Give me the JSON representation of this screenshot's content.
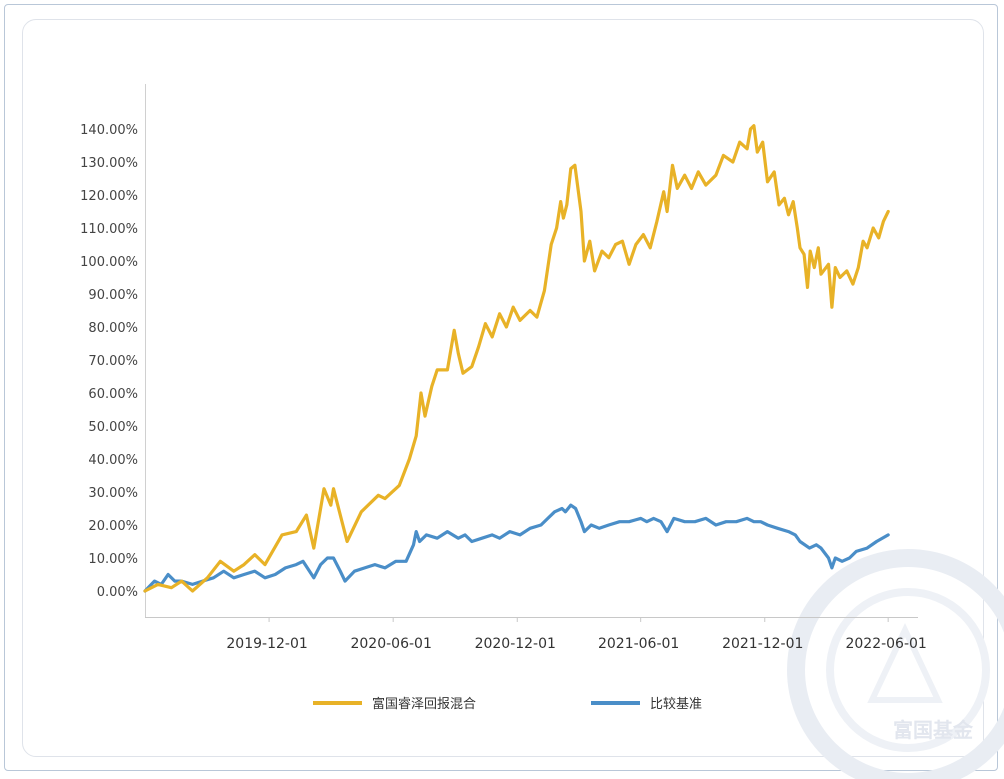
{
  "chart_data": {
    "type": "line",
    "y_tick_labels": [
      "0.00%",
      "10.00%",
      "20.00%",
      "30.00%",
      "40.00%",
      "50.00%",
      "60.00%",
      "70.00%",
      "80.00%",
      "90.00%",
      "100.00%",
      "110.00%",
      "120.00%",
      "130.00%",
      "140.00%"
    ],
    "x_tick_labels": [
      "2019-12-01",
      "2020-06-01",
      "2020-12-01",
      "2021-06-01",
      "2021-12-01",
      "2022-06-01"
    ],
    "x_tick_dates": [
      "2019-12-01",
      "2020-06-01",
      "2020-12-01",
      "2021-06-01",
      "2021-12-01",
      "2022-06-01"
    ],
    "xlim": [
      "2019-06-01",
      "2022-07-15"
    ],
    "ylim": [
      -8,
      155
    ],
    "grid": false,
    "legend_position": "bottom",
    "series": [
      {
        "name": "富国睿泽回报混合",
        "color": "#e8b227",
        "points": [
          [
            "2019-06-01",
            0
          ],
          [
            "2019-06-20",
            2
          ],
          [
            "2019-07-10",
            1
          ],
          [
            "2019-07-25",
            3
          ],
          [
            "2019-08-10",
            0
          ],
          [
            "2019-09-01",
            4
          ],
          [
            "2019-09-20",
            9
          ],
          [
            "2019-10-10",
            6
          ],
          [
            "2019-10-25",
            8
          ],
          [
            "2019-11-10",
            11
          ],
          [
            "2019-11-25",
            8
          ],
          [
            "2019-12-20",
            17
          ],
          [
            "2020-01-10",
            18
          ],
          [
            "2020-01-25",
            23
          ],
          [
            "2020-02-05",
            13
          ],
          [
            "2020-02-20",
            31
          ],
          [
            "2020-03-01",
            26
          ],
          [
            "2020-03-05",
            31
          ],
          [
            "2020-03-25",
            15
          ],
          [
            "2020-04-15",
            24
          ],
          [
            "2020-05-10",
            29
          ],
          [
            "2020-05-20",
            28
          ],
          [
            "2020-06-10",
            32
          ],
          [
            "2020-06-25",
            40
          ],
          [
            "2020-07-05",
            47
          ],
          [
            "2020-07-12",
            60
          ],
          [
            "2020-07-18",
            53
          ],
          [
            "2020-07-28",
            62
          ],
          [
            "2020-08-05",
            67
          ],
          [
            "2020-08-20",
            67
          ],
          [
            "2020-08-30",
            79
          ],
          [
            "2020-09-05",
            72
          ],
          [
            "2020-09-12",
            66
          ],
          [
            "2020-09-25",
            68
          ],
          [
            "2020-10-05",
            74
          ],
          [
            "2020-10-15",
            81
          ],
          [
            "2020-10-25",
            77
          ],
          [
            "2020-11-05",
            84
          ],
          [
            "2020-11-15",
            80
          ],
          [
            "2020-11-25",
            86
          ],
          [
            "2020-12-05",
            82
          ],
          [
            "2020-12-20",
            85
          ],
          [
            "2020-12-30",
            83
          ],
          [
            "2021-01-10",
            91
          ],
          [
            "2021-01-20",
            105
          ],
          [
            "2021-01-28",
            110
          ],
          [
            "2021-02-03",
            118
          ],
          [
            "2021-02-07",
            113
          ],
          [
            "2021-02-12",
            117
          ],
          [
            "2021-02-18",
            128
          ],
          [
            "2021-02-24",
            129
          ],
          [
            "2021-03-05",
            115
          ],
          [
            "2021-03-10",
            100
          ],
          [
            "2021-03-18",
            106
          ],
          [
            "2021-03-25",
            97
          ],
          [
            "2021-04-05",
            103
          ],
          [
            "2021-04-15",
            101
          ],
          [
            "2021-04-25",
            105
          ],
          [
            "2021-05-05",
            106
          ],
          [
            "2021-05-15",
            99
          ],
          [
            "2021-05-25",
            105
          ],
          [
            "2021-06-05",
            108
          ],
          [
            "2021-06-15",
            104
          ],
          [
            "2021-06-25",
            112
          ],
          [
            "2021-07-05",
            121
          ],
          [
            "2021-07-10",
            115
          ],
          [
            "2021-07-18",
            129
          ],
          [
            "2021-07-25",
            122
          ],
          [
            "2021-08-05",
            126
          ],
          [
            "2021-08-15",
            122
          ],
          [
            "2021-08-25",
            127
          ],
          [
            "2021-09-05",
            123
          ],
          [
            "2021-09-20",
            126
          ],
          [
            "2021-10-01",
            132
          ],
          [
            "2021-10-15",
            130
          ],
          [
            "2021-10-25",
            136
          ],
          [
            "2021-11-05",
            134
          ],
          [
            "2021-11-10",
            140
          ],
          [
            "2021-11-15",
            141
          ],
          [
            "2021-11-20",
            133
          ],
          [
            "2021-11-28",
            136
          ],
          [
            "2021-12-05",
            124
          ],
          [
            "2021-12-15",
            127
          ],
          [
            "2021-12-22",
            117
          ],
          [
            "2021-12-30",
            119
          ],
          [
            "2022-01-05",
            114
          ],
          [
            "2022-01-12",
            118
          ],
          [
            "2022-01-18",
            110
          ],
          [
            "2022-01-22",
            104
          ],
          [
            "2022-01-28",
            102
          ],
          [
            "2022-02-02",
            92
          ],
          [
            "2022-02-06",
            103
          ],
          [
            "2022-02-12",
            98
          ],
          [
            "2022-02-18",
            104
          ],
          [
            "2022-02-22",
            96
          ],
          [
            "2022-03-05",
            99
          ],
          [
            "2022-03-10",
            86
          ],
          [
            "2022-03-15",
            98
          ],
          [
            "2022-03-22",
            95
          ],
          [
            "2022-04-01",
            97
          ],
          [
            "2022-04-10",
            93
          ],
          [
            "2022-04-18",
            98
          ],
          [
            "2022-04-25",
            106
          ],
          [
            "2022-05-01",
            104
          ],
          [
            "2022-05-10",
            110
          ],
          [
            "2022-05-18",
            107
          ],
          [
            "2022-05-25",
            112
          ],
          [
            "2022-06-01",
            115
          ]
        ]
      },
      {
        "name": "比较基准",
        "color": "#4a8ec8",
        "points": [
          [
            "2019-06-01",
            0
          ],
          [
            "2019-06-15",
            3
          ],
          [
            "2019-06-25",
            2
          ],
          [
            "2019-07-05",
            5
          ],
          [
            "2019-07-15",
            3
          ],
          [
            "2019-07-25",
            3
          ],
          [
            "2019-08-10",
            2
          ],
          [
            "2019-08-25",
            3
          ],
          [
            "2019-09-10",
            4
          ],
          [
            "2019-09-25",
            6
          ],
          [
            "2019-10-10",
            4
          ],
          [
            "2019-10-25",
            5
          ],
          [
            "2019-11-10",
            6
          ],
          [
            "2019-11-25",
            4
          ],
          [
            "2019-12-10",
            5
          ],
          [
            "2019-12-25",
            7
          ],
          [
            "2020-01-10",
            8
          ],
          [
            "2020-01-20",
            9
          ],
          [
            "2020-02-05",
            4
          ],
          [
            "2020-02-15",
            8
          ],
          [
            "2020-02-25",
            10
          ],
          [
            "2020-03-05",
            10
          ],
          [
            "2020-03-15",
            6
          ],
          [
            "2020-03-22",
            3
          ],
          [
            "2020-04-05",
            6
          ],
          [
            "2020-04-20",
            7
          ],
          [
            "2020-05-05",
            8
          ],
          [
            "2020-05-20",
            7
          ],
          [
            "2020-06-05",
            9
          ],
          [
            "2020-06-20",
            9
          ],
          [
            "2020-07-01",
            14
          ],
          [
            "2020-07-05",
            18
          ],
          [
            "2020-07-10",
            15
          ],
          [
            "2020-07-20",
            17
          ],
          [
            "2020-08-05",
            16
          ],
          [
            "2020-08-20",
            18
          ],
          [
            "2020-09-05",
            16
          ],
          [
            "2020-09-15",
            17
          ],
          [
            "2020-09-25",
            15
          ],
          [
            "2020-10-10",
            16
          ],
          [
            "2020-10-25",
            17
          ],
          [
            "2020-11-05",
            16
          ],
          [
            "2020-11-20",
            18
          ],
          [
            "2020-12-05",
            17
          ],
          [
            "2020-12-20",
            19
          ],
          [
            "2021-01-05",
            20
          ],
          [
            "2021-01-15",
            22
          ],
          [
            "2021-01-25",
            24
          ],
          [
            "2021-02-05",
            25
          ],
          [
            "2021-02-10",
            24
          ],
          [
            "2021-02-18",
            26
          ],
          [
            "2021-02-25",
            25
          ],
          [
            "2021-03-05",
            21
          ],
          [
            "2021-03-10",
            18
          ],
          [
            "2021-03-20",
            20
          ],
          [
            "2021-04-01",
            19
          ],
          [
            "2021-04-15",
            20
          ],
          [
            "2021-05-01",
            21
          ],
          [
            "2021-05-15",
            21
          ],
          [
            "2021-06-01",
            22
          ],
          [
            "2021-06-10",
            21
          ],
          [
            "2021-06-20",
            22
          ],
          [
            "2021-07-01",
            21
          ],
          [
            "2021-07-10",
            18
          ],
          [
            "2021-07-20",
            22
          ],
          [
            "2021-08-05",
            21
          ],
          [
            "2021-08-20",
            21
          ],
          [
            "2021-09-05",
            22
          ],
          [
            "2021-09-20",
            20
          ],
          [
            "2021-10-05",
            21
          ],
          [
            "2021-10-20",
            21
          ],
          [
            "2021-11-05",
            22
          ],
          [
            "2021-11-15",
            21
          ],
          [
            "2021-11-25",
            21
          ],
          [
            "2021-12-05",
            20
          ],
          [
            "2021-12-20",
            19
          ],
          [
            "2022-01-05",
            18
          ],
          [
            "2022-01-15",
            17
          ],
          [
            "2022-01-22",
            15
          ],
          [
            "2022-02-05",
            13
          ],
          [
            "2022-02-15",
            14
          ],
          [
            "2022-02-22",
            13
          ],
          [
            "2022-03-05",
            10
          ],
          [
            "2022-03-10",
            7
          ],
          [
            "2022-03-15",
            10
          ],
          [
            "2022-03-25",
            9
          ],
          [
            "2022-04-05",
            10
          ],
          [
            "2022-04-15",
            12
          ],
          [
            "2022-05-01",
            13
          ],
          [
            "2022-05-15",
            15
          ],
          [
            "2022-06-01",
            17
          ]
        ]
      }
    ]
  },
  "watermark": {
    "text": "富国基金",
    "color": "#dfe5ee"
  }
}
